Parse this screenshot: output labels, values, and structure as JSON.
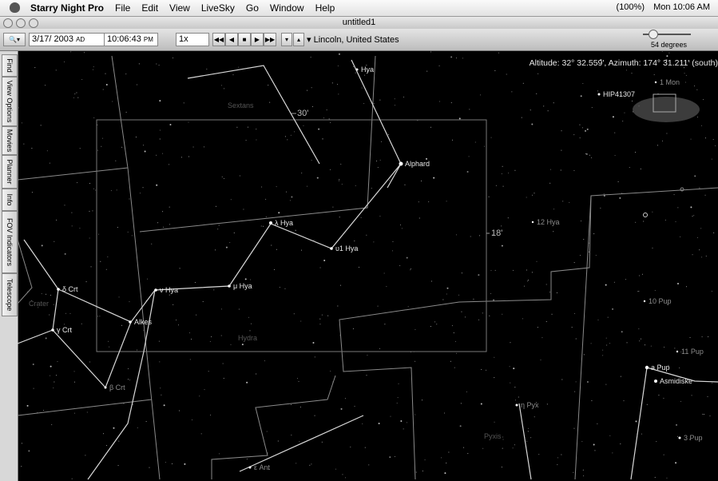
{
  "menubar": {
    "app": "Starry Night Pro",
    "menus": [
      "File",
      "Edit",
      "View",
      "LiveSky",
      "Go",
      "Window",
      "Help"
    ],
    "battery": "(100%)",
    "clock": "Mon 10:06 AM"
  },
  "window": {
    "title": "untitled1"
  },
  "toolbar": {
    "date": "3/17/ 2003",
    "era": "AD",
    "time": "10:06:43",
    "ampm": "PM",
    "rate": "1x",
    "location": "Lincoln, United States",
    "zoom": "54 degrees"
  },
  "side_tabs": [
    "Find",
    "View Options",
    "Movies",
    "Planner",
    "Info",
    "FOV Indicators",
    "Telescope"
  ],
  "sky": {
    "readout": "Altitude: 32° 32.559', Azimuth: 174° 31.211' (south)",
    "labels": [
      "Hya",
      "Alphard",
      "λ Hya",
      "υ1 Hya",
      "μ Hya",
      "ν Hya",
      "δ Crt",
      "γ Crt",
      "Alkes",
      "β Crt",
      "12 Hya",
      "HIP41307",
      "1 Mon",
      "10 Pup",
      "11 Pup",
      "a Pup",
      "Asmidiske",
      "3 Pup",
      "η Pyx",
      "ε Ant",
      "Sextans",
      "Crater",
      "Hydra",
      "Pyxis",
      "30'",
      "18'"
    ]
  }
}
